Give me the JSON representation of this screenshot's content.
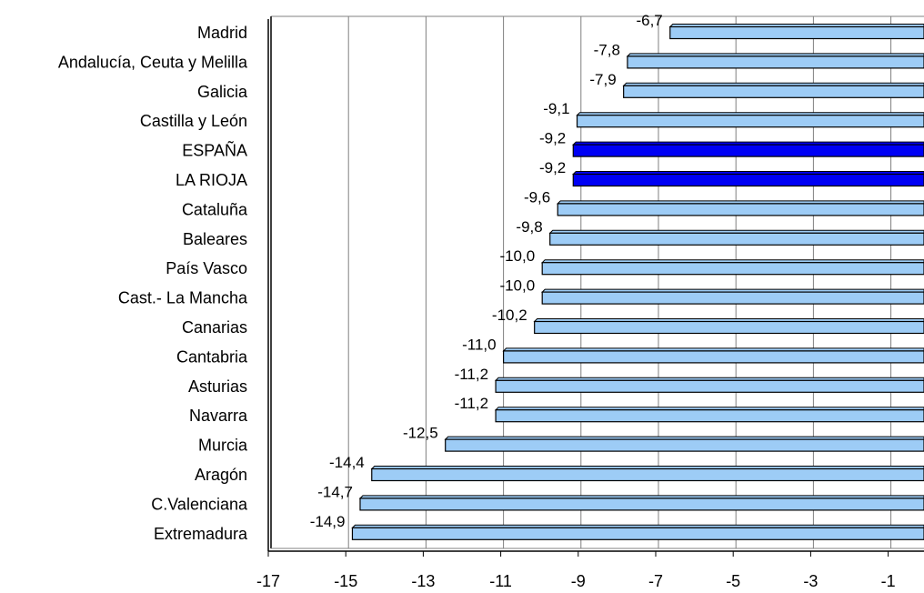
{
  "chart_data": {
    "type": "bar",
    "orientation": "horizontal",
    "categories": [
      "Madrid",
      "Andalucía, Ceuta y Melilla",
      "Galicia",
      "Castilla y León",
      "ESPAÑA",
      "LA RIOJA",
      "Cataluña",
      "Baleares",
      "País Vasco",
      "Cast.- La Mancha",
      "Canarias",
      "Cantabria",
      "Asturias",
      "Navarra",
      "Murcia",
      "Aragón",
      "C.Valenciana",
      "Extremadura"
    ],
    "values": [
      -6.7,
      -7.8,
      -7.9,
      -9.1,
      -9.2,
      -9.2,
      -9.6,
      -9.8,
      -10.0,
      -10.0,
      -10.2,
      -11.0,
      -11.2,
      -11.2,
      -12.5,
      -14.4,
      -14.7,
      -14.9
    ],
    "value_labels": [
      "-6,7",
      "-7,8",
      "-7,9",
      "-9,1",
      "-9,2",
      "-9,2",
      "-9,6",
      "-9,8",
      "-10,0",
      "-10,0",
      "-10,2",
      "-11,0",
      "-11,2",
      "-11,2",
      "-12,5",
      "-14,4",
      "-14,7",
      "-14,9"
    ],
    "highlighted": [
      "ESPAÑA",
      "LA RIOJA"
    ],
    "xlim": [
      -17,
      0
    ],
    "xticks": [
      -17,
      -15,
      -13,
      -11,
      -9,
      -7,
      -5,
      -3,
      -1
    ],
    "grid": true,
    "title": "",
    "xlabel": "",
    "ylabel": "",
    "colors": {
      "bar": "#9DCCF6",
      "bar_highlight": "#0000F5",
      "bar_edge": "#000000",
      "grid": "#808080"
    }
  }
}
